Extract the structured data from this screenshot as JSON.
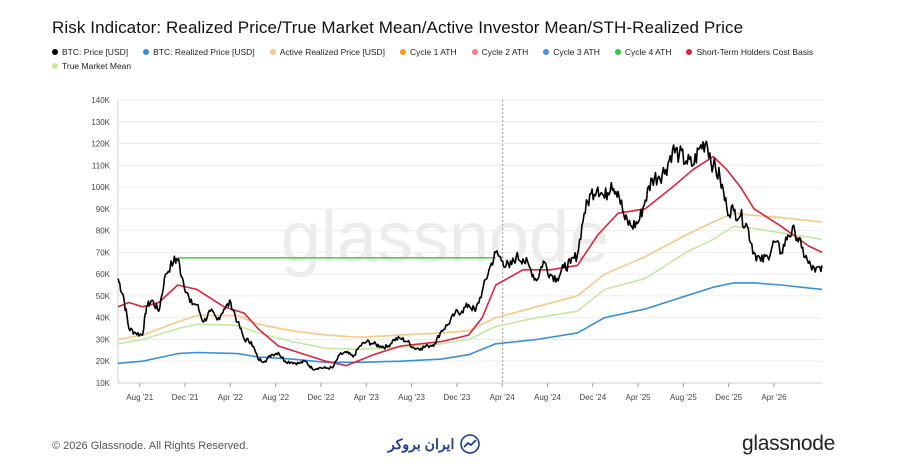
{
  "title": "Risk Indicator: Realized Price/True Market Mean/Active Investor Mean/STH-Realized Price",
  "legend": [
    {
      "label": "BTC: Price [USD]",
      "color": "#000000"
    },
    {
      "label": "BTC: Realized Price [USD]",
      "color": "#3b8fd0"
    },
    {
      "label": "Active Realized Price [USD]",
      "color": "#f5c98a"
    },
    {
      "label": "Cycle 1 ATH",
      "color": "#f39c12"
    },
    {
      "label": "Cycle 2 ATH",
      "color": "#f08080"
    },
    {
      "label": "Cycle 3 ATH",
      "color": "#4a90e2"
    },
    {
      "label": "Cycle 4 ATH",
      "color": "#2ecc40"
    },
    {
      "label": "Short-Term Holders Cost Basis",
      "color": "#d7263d"
    },
    {
      "label": "True Market Mean",
      "color": "#c5e8a5"
    }
  ],
  "watermark": "glassnode",
  "footer": {
    "copyright": "© 2026 Glassnode. All Rights Reserved.",
    "partner": "ایران بروکر",
    "brand": "glassnode"
  },
  "chart_data": {
    "type": "line",
    "x_ticks": [
      "Aug '21",
      "Dec '21",
      "Apr '22",
      "Aug '22",
      "Dec '22",
      "Apr '23",
      "Aug '23",
      "Dec '23",
      "Apr '24",
      "Aug '24",
      "Dec '24",
      "Apr '25",
      "Aug '25",
      "Dec '25",
      "Apr '26"
    ],
    "y_ticks": [
      "10K",
      "20K",
      "30K",
      "40K",
      "50K",
      "60K",
      "70K",
      "80K",
      "90K",
      "100K",
      "110K",
      "120K",
      "130K",
      "140K"
    ],
    "ylim": [
      10000,
      140000
    ],
    "xlim": [
      2021.42,
      2026.6
    ],
    "grid": true,
    "vline_x": 2024.25,
    "colors": {
      "price": "#000000",
      "realized": "#3b8fd0",
      "active": "#f5c98a",
      "sth": "#d7263d",
      "tmm": "#c5e8a5",
      "cycle4": "#2ecc40"
    },
    "cycle4_ath": {
      "y": 67500,
      "x_start": 2021.86,
      "x_end": 2024.2
    },
    "series": [
      {
        "key": "price",
        "name": "BTC: Price [USD]",
        "points": [
          [
            2021.42,
            58000
          ],
          [
            2021.46,
            50000
          ],
          [
            2021.5,
            35000
          ],
          [
            2021.55,
            33000
          ],
          [
            2021.6,
            32000
          ],
          [
            2021.63,
            45000
          ],
          [
            2021.67,
            48000
          ],
          [
            2021.72,
            43000
          ],
          [
            2021.77,
            60000
          ],
          [
            2021.83,
            66000
          ],
          [
            2021.86,
            67000
          ],
          [
            2021.9,
            57000
          ],
          [
            2021.95,
            47000
          ],
          [
            2022.0,
            46000
          ],
          [
            2022.05,
            38000
          ],
          [
            2022.1,
            43000
          ],
          [
            2022.15,
            39000
          ],
          [
            2022.2,
            44000
          ],
          [
            2022.25,
            47000
          ],
          [
            2022.3,
            38000
          ],
          [
            2022.35,
            30000
          ],
          [
            2022.4,
            29000
          ],
          [
            2022.45,
            21000
          ],
          [
            2022.5,
            20000
          ],
          [
            2022.55,
            23000
          ],
          [
            2022.6,
            24000
          ],
          [
            2022.65,
            20000
          ],
          [
            2022.7,
            19500
          ],
          [
            2022.75,
            19000
          ],
          [
            2022.8,
            20000
          ],
          [
            2022.85,
            16500
          ],
          [
            2022.9,
            17000
          ],
          [
            2022.95,
            16800
          ],
          [
            2023.0,
            17000
          ],
          [
            2023.05,
            23000
          ],
          [
            2023.1,
            24000
          ],
          [
            2023.15,
            22000
          ],
          [
            2023.2,
            27000
          ],
          [
            2023.25,
            29000
          ],
          [
            2023.3,
            28000
          ],
          [
            2023.35,
            27000
          ],
          [
            2023.4,
            26500
          ],
          [
            2023.45,
            30000
          ],
          [
            2023.5,
            30500
          ],
          [
            2023.55,
            29000
          ],
          [
            2023.6,
            26000
          ],
          [
            2023.65,
            26000
          ],
          [
            2023.7,
            27000
          ],
          [
            2023.75,
            28000
          ],
          [
            2023.8,
            34000
          ],
          [
            2023.85,
            37000
          ],
          [
            2023.9,
            42000
          ],
          [
            2023.95,
            43000
          ],
          [
            2024.0,
            46000
          ],
          [
            2024.05,
            43000
          ],
          [
            2024.1,
            52000
          ],
          [
            2024.15,
            62000
          ],
          [
            2024.2,
            70000
          ],
          [
            2024.25,
            66000
          ],
          [
            2024.3,
            63000
          ],
          [
            2024.35,
            68000
          ],
          [
            2024.4,
            67000
          ],
          [
            2024.45,
            63000
          ],
          [
            2024.5,
            57000
          ],
          [
            2024.55,
            66000
          ],
          [
            2024.6,
            60000
          ],
          [
            2024.65,
            58000
          ],
          [
            2024.7,
            63000
          ],
          [
            2024.75,
            65000
          ],
          [
            2024.8,
            69000
          ],
          [
            2024.85,
            88000
          ],
          [
            2024.9,
            97000
          ],
          [
            2024.95,
            100000
          ],
          [
            2025.0,
            95000
          ],
          [
            2025.05,
            102000
          ],
          [
            2025.1,
            98000
          ],
          [
            2025.15,
            85000
          ],
          [
            2025.2,
            82000
          ],
          [
            2025.25,
            84000
          ],
          [
            2025.3,
            94000
          ],
          [
            2025.35,
            104000
          ],
          [
            2025.4,
            105000
          ],
          [
            2025.45,
            108000
          ],
          [
            2025.5,
            117000
          ],
          [
            2025.55,
            115000
          ],
          [
            2025.6,
            112000
          ],
          [
            2025.65,
            110000
          ],
          [
            2025.7,
            118000
          ],
          [
            2025.75,
            121000
          ],
          [
            2025.8,
            110000
          ],
          [
            2025.85,
            104000
          ],
          [
            2025.9,
            90000
          ],
          [
            2025.95,
            89000
          ],
          [
            2026.0,
            87000
          ],
          [
            2026.05,
            82000
          ],
          [
            2026.1,
            70000
          ],
          [
            2026.15,
            66000
          ],
          [
            2026.2,
            68000
          ],
          [
            2026.25,
            75000
          ],
          [
            2026.3,
            70000
          ],
          [
            2026.35,
            78000
          ],
          [
            2026.4,
            80000
          ],
          [
            2026.45,
            72000
          ],
          [
            2026.5,
            65000
          ],
          [
            2026.55,
            61000
          ],
          [
            2026.6,
            64000
          ]
        ]
      },
      {
        "key": "realized",
        "name": "BTC: Realized Price [USD]",
        "points": [
          [
            2021.42,
            19000
          ],
          [
            2021.6,
            20000
          ],
          [
            2021.86,
            23500
          ],
          [
            2022.0,
            24000
          ],
          [
            2022.3,
            23500
          ],
          [
            2022.45,
            22000
          ],
          [
            2022.7,
            21000
          ],
          [
            2022.95,
            19500
          ],
          [
            2023.2,
            19500
          ],
          [
            2023.5,
            20000
          ],
          [
            2023.8,
            21000
          ],
          [
            2024.0,
            23000
          ],
          [
            2024.2,
            28000
          ],
          [
            2024.5,
            30000
          ],
          [
            2024.8,
            33000
          ],
          [
            2025.0,
            40000
          ],
          [
            2025.3,
            44000
          ],
          [
            2025.6,
            50000
          ],
          [
            2025.8,
            54000
          ],
          [
            2025.95,
            56000
          ],
          [
            2026.1,
            56000
          ],
          [
            2026.3,
            55000
          ],
          [
            2026.6,
            53000
          ]
        ]
      },
      {
        "key": "active",
        "name": "Active Realized Price [USD]",
        "points": [
          [
            2021.42,
            30000
          ],
          [
            2021.6,
            32000
          ],
          [
            2021.86,
            38000
          ],
          [
            2022.0,
            41000
          ],
          [
            2022.3,
            41000
          ],
          [
            2022.45,
            37000
          ],
          [
            2022.7,
            34000
          ],
          [
            2022.95,
            32000
          ],
          [
            2023.2,
            31000
          ],
          [
            2023.5,
            32000
          ],
          [
            2023.8,
            33000
          ],
          [
            2024.0,
            34000
          ],
          [
            2024.2,
            40000
          ],
          [
            2024.5,
            45000
          ],
          [
            2024.8,
            50000
          ],
          [
            2025.0,
            60000
          ],
          [
            2025.3,
            68000
          ],
          [
            2025.6,
            78000
          ],
          [
            2025.8,
            84000
          ],
          [
            2025.95,
            88000
          ],
          [
            2026.1,
            87000
          ],
          [
            2026.3,
            86000
          ],
          [
            2026.6,
            84000
          ]
        ]
      },
      {
        "key": "tmm",
        "name": "True Market Mean",
        "points": [
          [
            2021.42,
            28000
          ],
          [
            2021.6,
            30000
          ],
          [
            2021.86,
            35000
          ],
          [
            2022.0,
            37000
          ],
          [
            2022.3,
            36500
          ],
          [
            2022.45,
            33000
          ],
          [
            2022.7,
            29000
          ],
          [
            2022.95,
            26000
          ],
          [
            2023.2,
            25500
          ],
          [
            2023.5,
            26500
          ],
          [
            2023.8,
            28000
          ],
          [
            2024.0,
            30000
          ],
          [
            2024.2,
            36000
          ],
          [
            2024.5,
            40000
          ],
          [
            2024.8,
            43000
          ],
          [
            2025.0,
            53000
          ],
          [
            2025.3,
            58000
          ],
          [
            2025.6,
            70000
          ],
          [
            2025.8,
            76000
          ],
          [
            2025.95,
            82000
          ],
          [
            2026.1,
            81000
          ],
          [
            2026.3,
            79000
          ],
          [
            2026.6,
            76000
          ]
        ]
      },
      {
        "key": "sth",
        "name": "Short-Term Holders Cost Basis",
        "points": [
          [
            2021.42,
            45000
          ],
          [
            2021.5,
            47000
          ],
          [
            2021.6,
            45000
          ],
          [
            2021.72,
            47000
          ],
          [
            2021.86,
            55000
          ],
          [
            2022.0,
            53000
          ],
          [
            2022.2,
            45000
          ],
          [
            2022.35,
            42000
          ],
          [
            2022.45,
            35000
          ],
          [
            2022.6,
            27000
          ],
          [
            2022.8,
            23000
          ],
          [
            2022.95,
            20000
          ],
          [
            2023.1,
            18000
          ],
          [
            2023.3,
            23000
          ],
          [
            2023.5,
            27000
          ],
          [
            2023.8,
            29000
          ],
          [
            2024.0,
            32000
          ],
          [
            2024.1,
            40000
          ],
          [
            2024.2,
            55000
          ],
          [
            2024.4,
            62000
          ],
          [
            2024.6,
            62000
          ],
          [
            2024.8,
            64000
          ],
          [
            2024.95,
            78000
          ],
          [
            2025.1,
            88000
          ],
          [
            2025.3,
            90000
          ],
          [
            2025.5,
            100000
          ],
          [
            2025.65,
            108000
          ],
          [
            2025.8,
            114000
          ],
          [
            2025.9,
            108000
          ],
          [
            2026.0,
            100000
          ],
          [
            2026.1,
            90000
          ],
          [
            2026.3,
            82000
          ],
          [
            2026.5,
            73000
          ],
          [
            2026.6,
            70000
          ]
        ]
      }
    ]
  }
}
